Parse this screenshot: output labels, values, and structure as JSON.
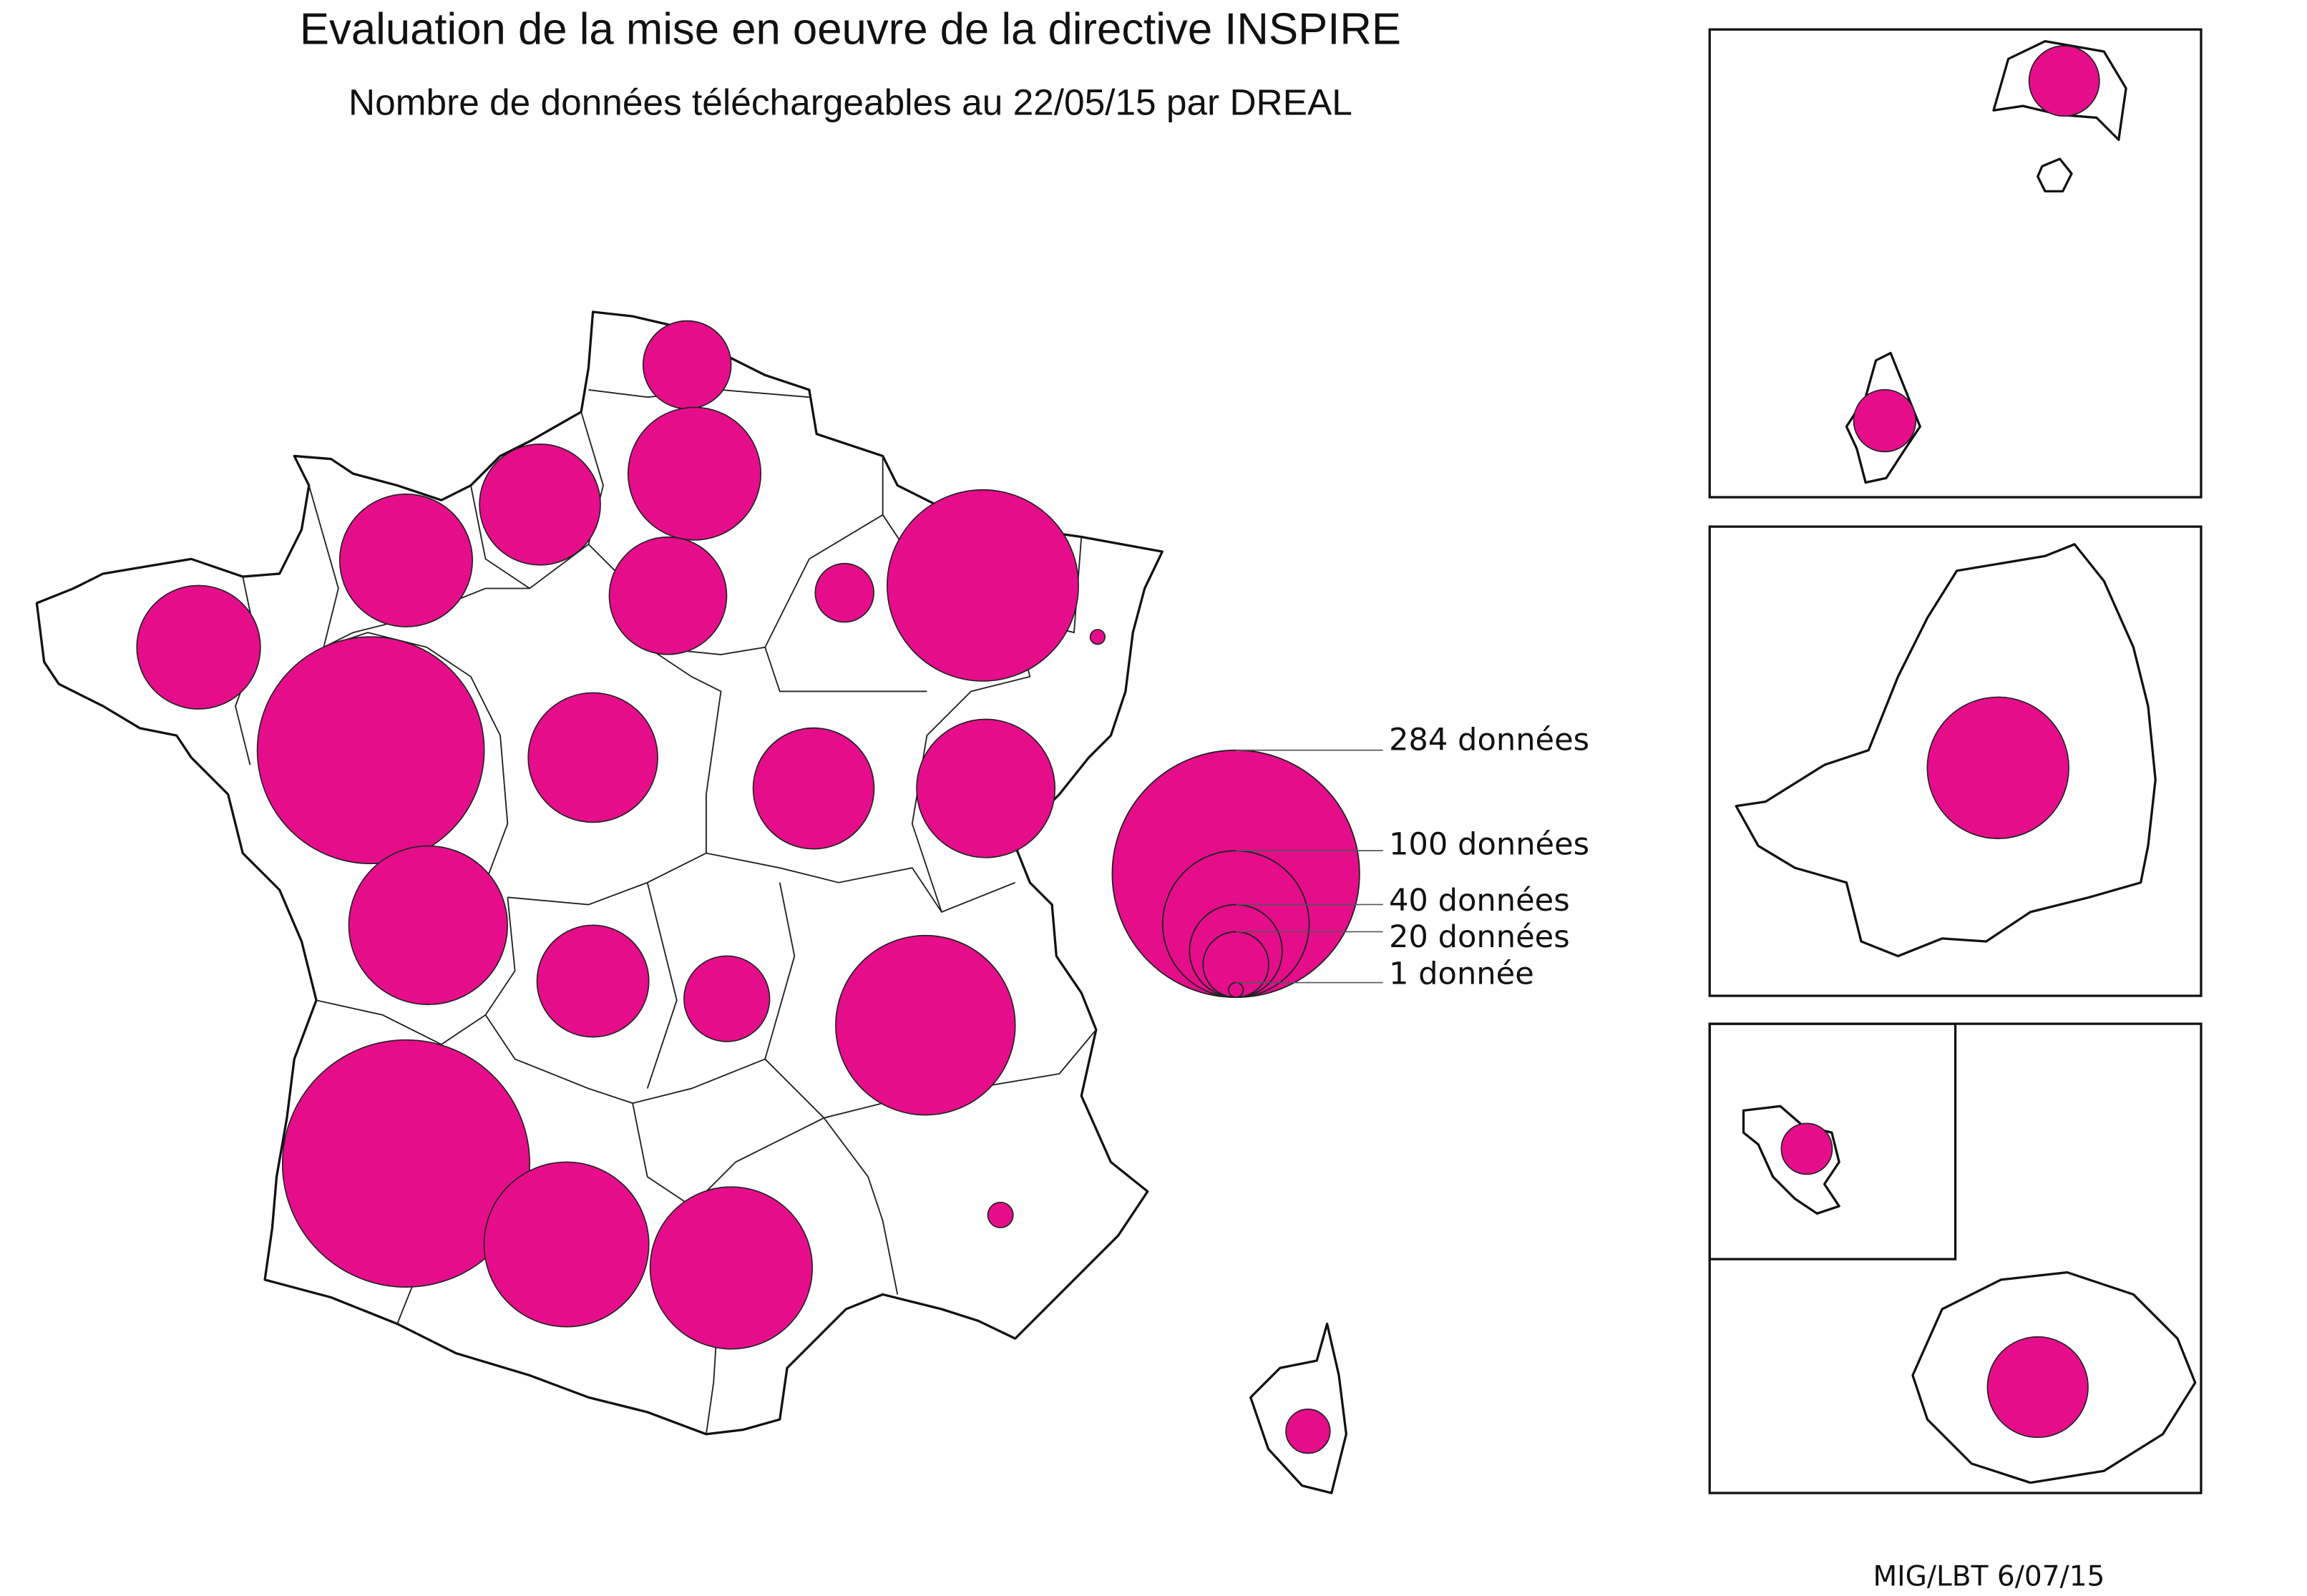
{
  "title": "Evaluation de la mise en oeuvre de la directive INSPIRE",
  "subtitle": "Nombre de données téléchargeables au 22/05/15 par DREAL",
  "credit": "MIG/LBT 6/07/15",
  "colors": {
    "bubble": "#e60d8b",
    "outline": "#111111"
  },
  "legend": {
    "items": [
      {
        "value": 284,
        "label": "284 données"
      },
      {
        "value": 100,
        "label": "100 données"
      },
      {
        "value": 40,
        "label": "40 données"
      },
      {
        "value": 20,
        "label": "20 données"
      },
      {
        "value": 1,
        "label": "1 donnée"
      }
    ]
  },
  "chart_data": {
    "type": "proportional-symbol-map",
    "title": "Evaluation de la mise en oeuvre de la directive INSPIRE",
    "subtitle": "Nombre de données téléchargeables au 22/05/15 par DREAL",
    "max_value": 284,
    "metropole": [
      {
        "region": "nord-pas-de-calais",
        "value": 36
      },
      {
        "region": "picardie",
        "value": 82
      },
      {
        "region": "haute-normandie",
        "value": 68
      },
      {
        "region": "basse-normandie",
        "value": 82
      },
      {
        "region": "bretagne",
        "value": 71
      },
      {
        "region": "ile-de-france",
        "value": 64
      },
      {
        "region": "champagne-ardenne",
        "value": 16
      },
      {
        "region": "lorraine",
        "value": 170
      },
      {
        "region": "alsace",
        "value": 1
      },
      {
        "region": "pays-de-la-loire",
        "value": 239
      },
      {
        "region": "centre",
        "value": 78
      },
      {
        "region": "bourgogne",
        "value": 68
      },
      {
        "region": "franche-comte",
        "value": 89
      },
      {
        "region": "poitou-charentes",
        "value": 117
      },
      {
        "region": "limousin",
        "value": 58
      },
      {
        "region": "auvergne",
        "value": 34
      },
      {
        "region": "rhone-alpes",
        "value": 150
      },
      {
        "region": "aquitaine",
        "value": 284
      },
      {
        "region": "midi-pyrenees",
        "value": 126
      },
      {
        "region": "languedoc-roussillon",
        "value": 122
      },
      {
        "region": "provence-alpes-cote-d-azur",
        "value": 3
      },
      {
        "region": "corse",
        "value": 9
      }
    ],
    "outremer": [
      {
        "region": "inset-1-north",
        "value": 23
      },
      {
        "region": "inset-1-south",
        "value": 18
      },
      {
        "region": "inset-2",
        "value": 93
      },
      {
        "region": "inset-3-small",
        "value": 12
      },
      {
        "region": "inset-3-large",
        "value": 47
      }
    ]
  }
}
